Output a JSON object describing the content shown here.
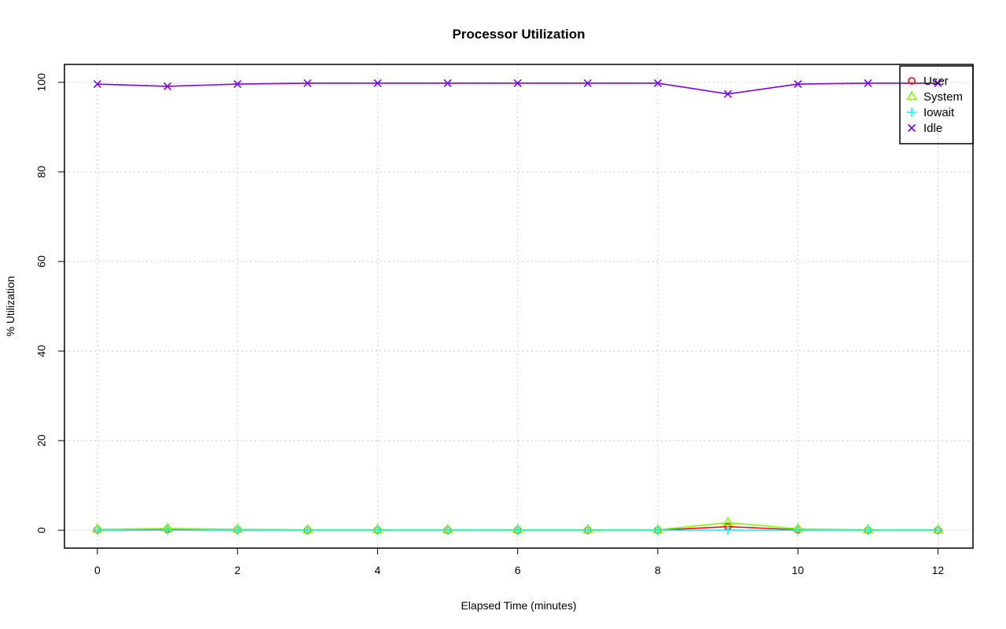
{
  "chart_data": {
    "type": "line",
    "title": "Processor Utilization",
    "xlabel": "Elapsed Time (minutes)",
    "ylabel": "% Utilization",
    "x": [
      0,
      1,
      2,
      3,
      4,
      5,
      6,
      7,
      8,
      9,
      10,
      11,
      12
    ],
    "xlim": [
      -0.47,
      12.5
    ],
    "ylim": [
      -4,
      104
    ],
    "xticks": [
      0,
      2,
      4,
      6,
      8,
      10,
      12
    ],
    "yticks": [
      0,
      20,
      40,
      60,
      80,
      100
    ],
    "grid": true,
    "legend_position": "top-right",
    "series": [
      {
        "name": "User",
        "color": "#ff0000",
        "marker": "circle",
        "values": [
          0.1,
          0.2,
          0.1,
          0.0,
          0.0,
          0.0,
          0.0,
          0.0,
          0.0,
          0.8,
          0.1,
          0.0,
          0.0
        ]
      },
      {
        "name": "System",
        "color": "#80ff00",
        "marker": "triangle",
        "values": [
          0.2,
          0.4,
          0.2,
          0.1,
          0.1,
          0.1,
          0.1,
          0.1,
          0.1,
          1.7,
          0.3,
          0.1,
          0.1
        ]
      },
      {
        "name": "Iowait",
        "color": "#00ffff",
        "marker": "plus",
        "values": [
          0.0,
          0.0,
          0.0,
          0.0,
          0.0,
          0.0,
          0.0,
          0.0,
          0.0,
          0.0,
          0.0,
          0.0,
          0.0
        ]
      },
      {
        "name": "Idle",
        "color": "#8000ff",
        "marker": "cross",
        "values": [
          99.6,
          99.1,
          99.6,
          99.8,
          99.8,
          99.8,
          99.8,
          99.8,
          99.8,
          97.4,
          99.6,
          99.8,
          99.8
        ]
      }
    ]
  }
}
